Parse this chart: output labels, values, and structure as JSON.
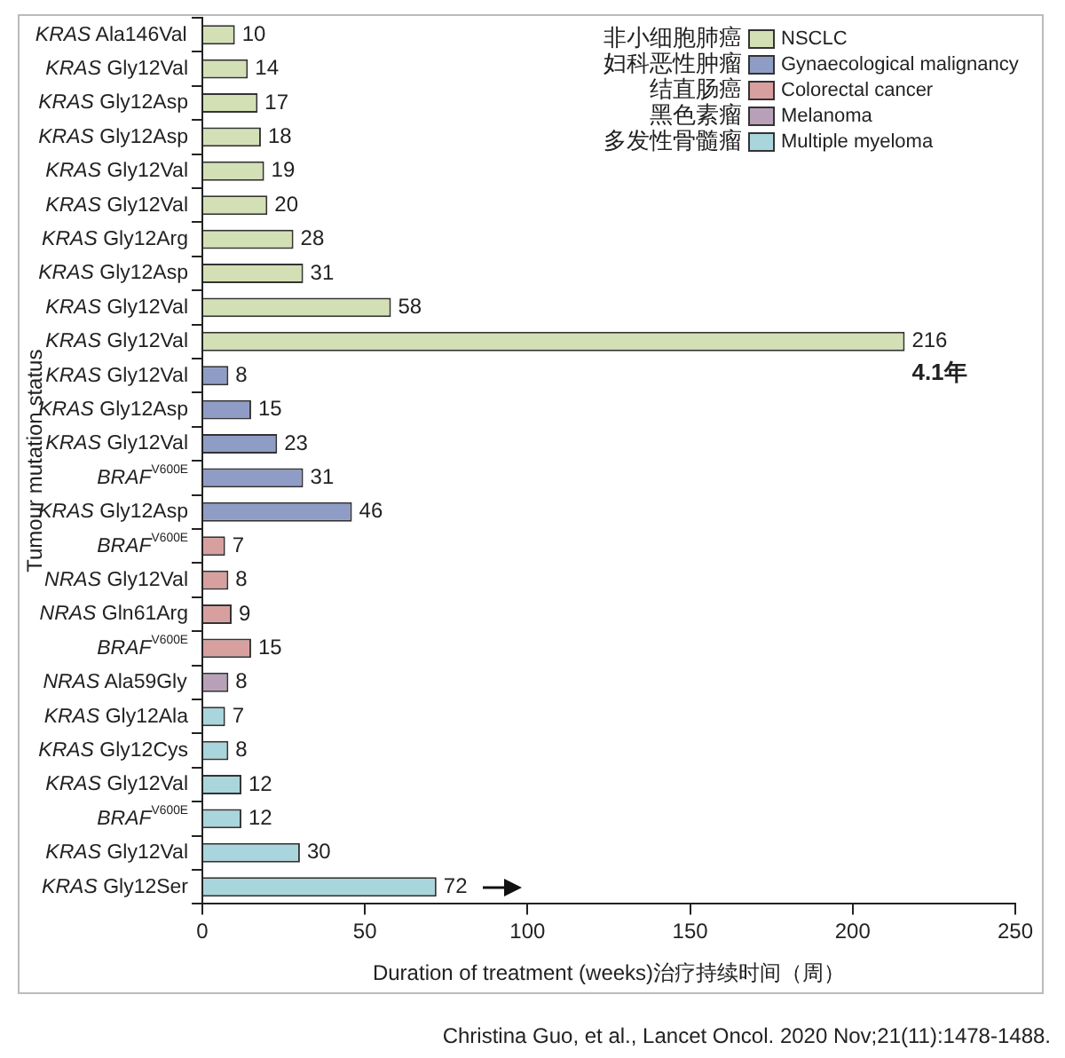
{
  "chart_data": {
    "type": "bar",
    "orientation": "horizontal",
    "xlabel": "Duration of treatment (weeks)治疗持续时间（周）",
    "ylabel": "Tumour mutation status",
    "categories": [
      "KRAS Ala146Val",
      "KRAS Gly12Val",
      "KRAS Gly12Asp",
      "KRAS Gly12Asp",
      "KRAS Gly12Val",
      "KRAS Gly12Val",
      "KRAS Gly12Arg",
      "KRAS Gly12Asp",
      "KRAS Gly12Val",
      "KRAS Gly12Val",
      "KRAS Gly12Val",
      "KRAS Gly12Asp",
      "KRAS Gly12Val",
      "BRAF$^{V600E}$",
      "KRAS Gly12Asp",
      "BRAF$^{V600E}$",
      "NRAS Gly12Val",
      "NRAS Gln61Arg",
      "BRAF$^{V600E}$",
      "NRAS Ala59Gly",
      "KRAS Gly12Ala",
      "KRAS Gly12Cys",
      "KRAS Gly12Val",
      "BRAF$^{V600E}$",
      "KRAS Gly12Val",
      "KRAS Gly12Ser"
    ],
    "series": [
      {
        "name": "NSCLC",
        "color": "#d3e0b5",
        "values": [
          10,
          14,
          17,
          18,
          19,
          20,
          28,
          31,
          58,
          216,
          null,
          null,
          null,
          null,
          null,
          null,
          null,
          null,
          null,
          null,
          null,
          null,
          null,
          null,
          null,
          null
        ]
      },
      {
        "name": "Gynaecological malignancy",
        "color": "#8f9cc5",
        "values": [
          null,
          null,
          null,
          null,
          null,
          null,
          null,
          null,
          null,
          null,
          8,
          15,
          23,
          31,
          46,
          null,
          null,
          null,
          null,
          null,
          null,
          null,
          null,
          null,
          null,
          null
        ]
      },
      {
        "name": "Colorectal cancer",
        "color": "#d7a09f",
        "values": [
          null,
          null,
          null,
          null,
          null,
          null,
          null,
          null,
          null,
          null,
          null,
          null,
          null,
          null,
          null,
          7,
          8,
          9,
          15,
          null,
          null,
          null,
          null,
          null,
          null,
          null
        ]
      },
      {
        "name": "Melanoma",
        "color": "#b9a0b9",
        "values": [
          null,
          null,
          null,
          null,
          null,
          null,
          null,
          null,
          null,
          null,
          null,
          null,
          null,
          null,
          null,
          null,
          null,
          null,
          null,
          8,
          null,
          null,
          null,
          null,
          null,
          null
        ]
      },
      {
        "name": "Multiple myeloma",
        "color": "#a9d5dc",
        "values": [
          null,
          null,
          null,
          null,
          null,
          null,
          null,
          null,
          null,
          null,
          null,
          null,
          null,
          null,
          null,
          null,
          null,
          null,
          null,
          null,
          7,
          8,
          12,
          12,
          30,
          72
        ]
      }
    ],
    "xlim": [
      0,
      250
    ],
    "xticks": [
      0,
      50,
      100,
      150,
      200,
      250
    ],
    "grid": false,
    "legend": "top right",
    "data_labels": true,
    "annotations": [
      "非小细胞肺癌",
      "妇科恶性肿瘤",
      "结直肠癌",
      "黑色素瘤",
      "多发性骨髓瘤",
      "4.1年",
      "Christina Guo, et al., Lancet Oncol. 2020 Nov;21(11):1478-1488."
    ]
  }
}
